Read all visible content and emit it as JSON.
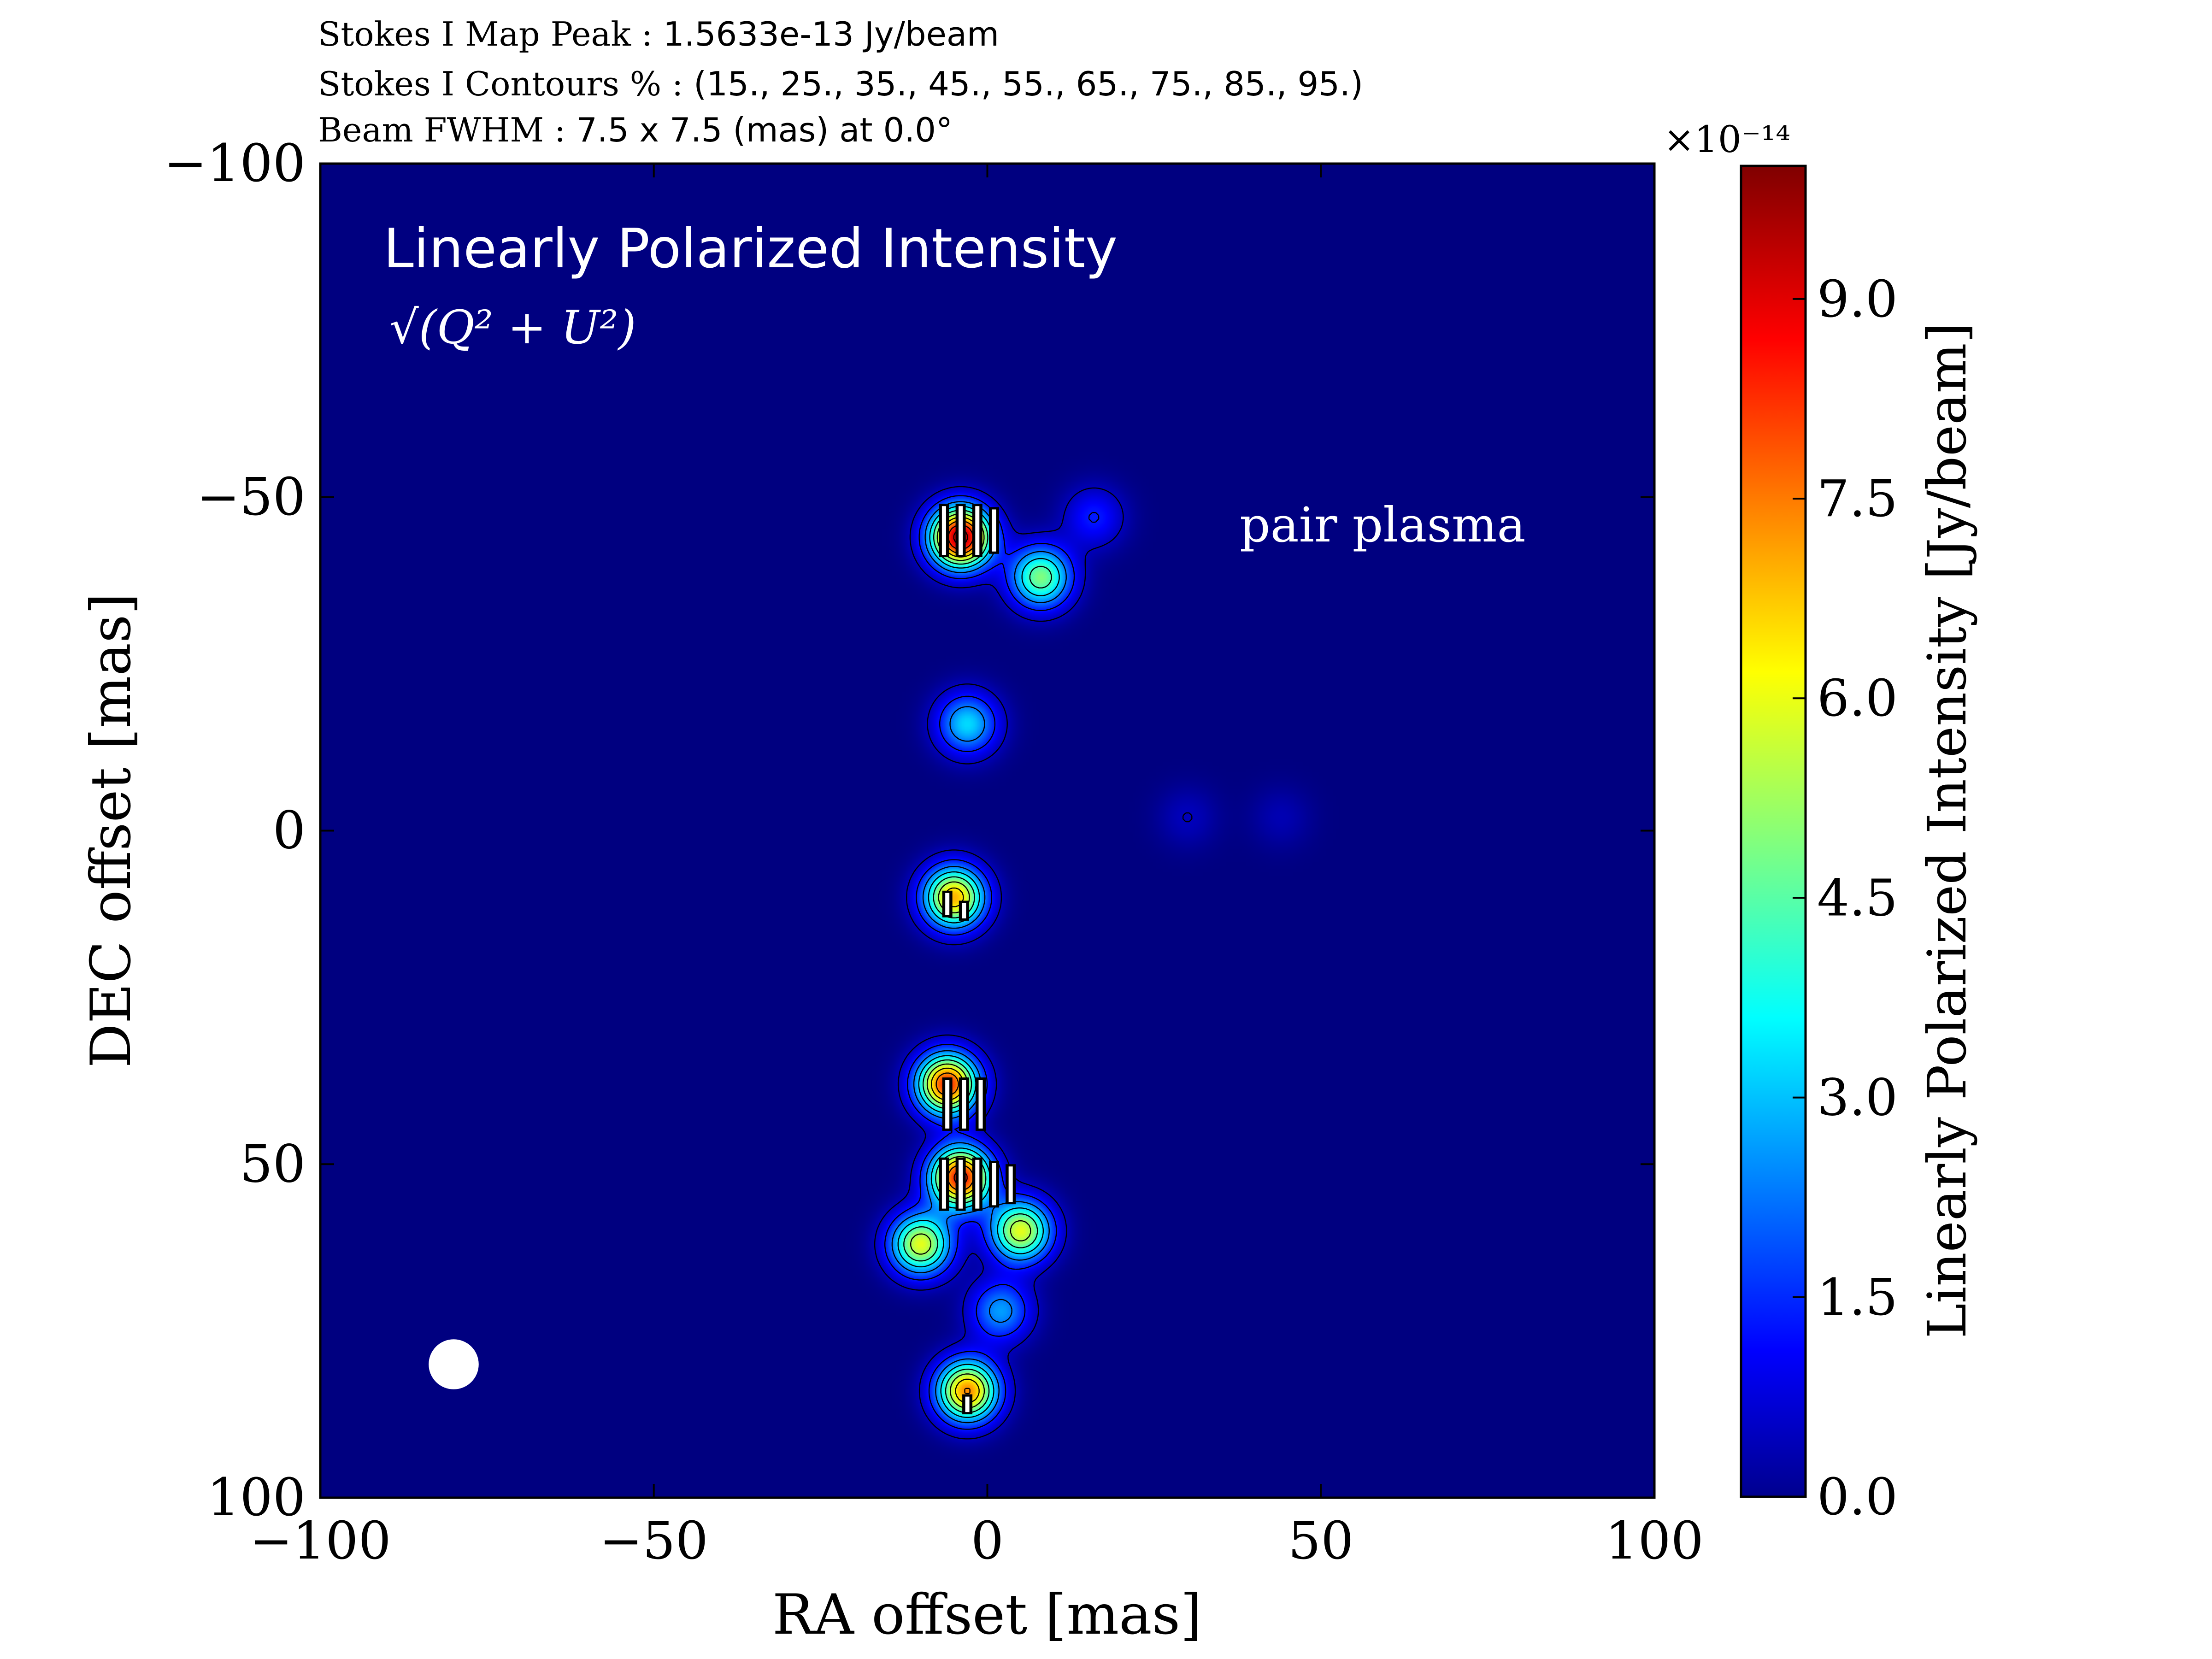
{
  "header": {
    "peak_label": "Stokes I Map Peak :",
    "peak_value": "1.5633e-13 Jy/beam",
    "contours_label": "Stokes I Contours % :",
    "contours_value": "(15., 25., 35., 45., 55., 65., 75., 85., 95.)",
    "beam_label": "Beam FWHM :",
    "beam_value": "7.5 x 7.5 (mas) at 0.0°"
  },
  "panel": {
    "title": "Linearly Polarized Intensity",
    "formula": "√(Q² + U²)",
    "annotation": "pair plasma"
  },
  "colors": {
    "background_min": "#00008f",
    "accent_max": "#800000"
  },
  "chart_data": {
    "type": "heatmap",
    "title": "",
    "xlabel": "RA offset [mas]",
    "ylabel": "DEC offset [mas]",
    "xlim": [
      -100,
      100
    ],
    "ylim": [
      -100,
      100
    ],
    "y_inverted": true,
    "x_ticks": [
      "−100",
      "−50",
      "0",
      "50",
      "100"
    ],
    "x_tick_values": [
      -100,
      -50,
      0,
      50,
      100
    ],
    "y_ticks": [
      "−100",
      "−50",
      "0",
      "50",
      "100"
    ],
    "y_tick_values": [
      -100,
      -50,
      0,
      50,
      100
    ],
    "grid": false,
    "colormap": "jet",
    "colorbar": {
      "label": "Linearly Polarized Intensity [Jy/beam]",
      "exponent": "×10⁻¹⁴",
      "range": [
        0,
        10.0
      ],
      "ticks": [
        "0.0",
        "1.5",
        "3.0",
        "4.5",
        "6.0",
        "7.5",
        "9.0"
      ],
      "tick_values": [
        0.0,
        1.5,
        3.0,
        4.5,
        6.0,
        7.5,
        9.0
      ]
    },
    "components": [
      {
        "ra": -4,
        "dec": -44,
        "peak": 9.8
      },
      {
        "ra": 8,
        "dec": -38,
        "peak": 5.0
      },
      {
        "ra": 16,
        "dec": -47,
        "peak": 1.5
      },
      {
        "ra": -3,
        "dec": -16,
        "peak": 3.4
      },
      {
        "ra": -5,
        "dec": 10,
        "peak": 7.0
      },
      {
        "ra": -6,
        "dec": 38,
        "peak": 8.4
      },
      {
        "ra": -4,
        "dec": 52,
        "peak": 8.7
      },
      {
        "ra": 5,
        "dec": 60,
        "peak": 6.0
      },
      {
        "ra": -10,
        "dec": 62,
        "peak": 6.0
      },
      {
        "ra": 2,
        "dec": 72,
        "peak": 2.8
      },
      {
        "ra": -3,
        "dec": 84,
        "peak": 7.4
      },
      {
        "ra": 30,
        "dec": -2,
        "peak": 0.6
      },
      {
        "ra": 44,
        "dec": -2,
        "peak": 0.5
      }
    ],
    "polarization_vectors": [
      {
        "ra": -6.5,
        "dec": -45,
        "length": 8
      },
      {
        "ra": -4,
        "dec": -45,
        "length": 8
      },
      {
        "ra": -1.5,
        "dec": -45,
        "length": 8
      },
      {
        "ra": 1,
        "dec": -45,
        "length": 7
      },
      {
        "ra": -6,
        "dec": 11,
        "length": 4
      },
      {
        "ra": -3.5,
        "dec": 12,
        "length": 3
      },
      {
        "ra": -6,
        "dec": 41,
        "length": 8
      },
      {
        "ra": -3.5,
        "dec": 41,
        "length": 8
      },
      {
        "ra": -1,
        "dec": 41,
        "length": 8
      },
      {
        "ra": -6.5,
        "dec": 53,
        "length": 8
      },
      {
        "ra": -4,
        "dec": 53,
        "length": 8
      },
      {
        "ra": -1.5,
        "dec": 53,
        "length": 8
      },
      {
        "ra": 1,
        "dec": 53,
        "length": 7
      },
      {
        "ra": 3.5,
        "dec": 53,
        "length": 6
      },
      {
        "ra": -3,
        "dec": 86,
        "length": 3
      }
    ],
    "beam": {
      "ra": -80,
      "dec": 80,
      "fwhm": 7.5,
      "color": "#ffffff"
    }
  }
}
